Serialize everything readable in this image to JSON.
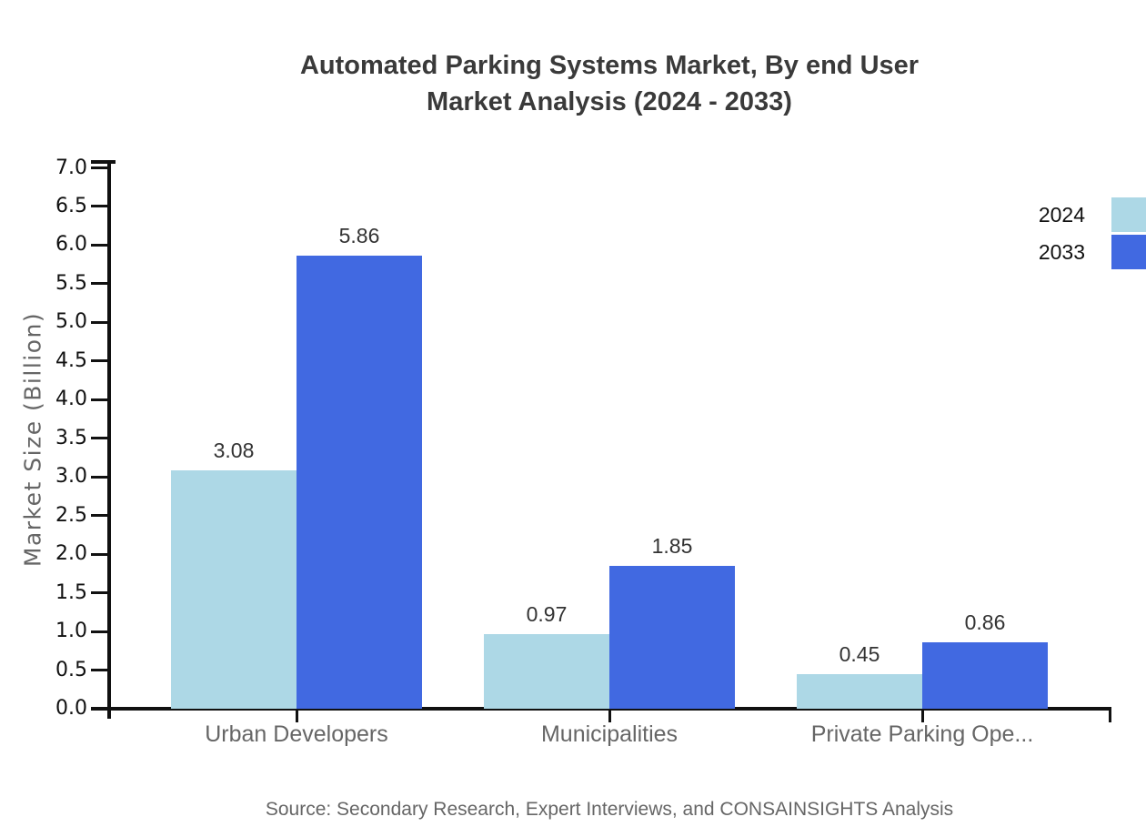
{
  "title": {
    "line1": "Automated Parking Systems Market, By end User",
    "line2": "Market Analysis (2024 - 2033)"
  },
  "source_note": "Source: Secondary Research, Expert Interviews, and CONSAINSIGHTS Analysis",
  "chart_data": {
    "type": "bar",
    "title": "Automated Parking Systems Market, By end User Market Analysis (2024 - 2033)",
    "categories": [
      "Urban Developers",
      "Municipalities",
      "Private Parking Ope..."
    ],
    "series": [
      {
        "name": "2024",
        "color": "#ADD8E6",
        "values": [
          3.08,
          0.97,
          0.45
        ]
      },
      {
        "name": "2033",
        "color": "#4169E1",
        "values": [
          5.86,
          1.85,
          0.86
        ]
      }
    ],
    "xlabel": "",
    "ylabel": "Market Size (Billion)",
    "ylim": [
      0,
      7
    ],
    "ytick_step": 0.5,
    "grid": false,
    "legend_position": "right",
    "value_labels_shown": true
  },
  "colors": {
    "series_2024": "#ADD8E6",
    "series_2033": "#4169E1",
    "title_text": "#3a3a3a",
    "axis_line": "#111111",
    "tick_label": "#111111",
    "category_label": "#666666",
    "y_axis_title": "#666666",
    "value_label": "#333333",
    "source_text": "#666666",
    "background": "#ffffff"
  }
}
